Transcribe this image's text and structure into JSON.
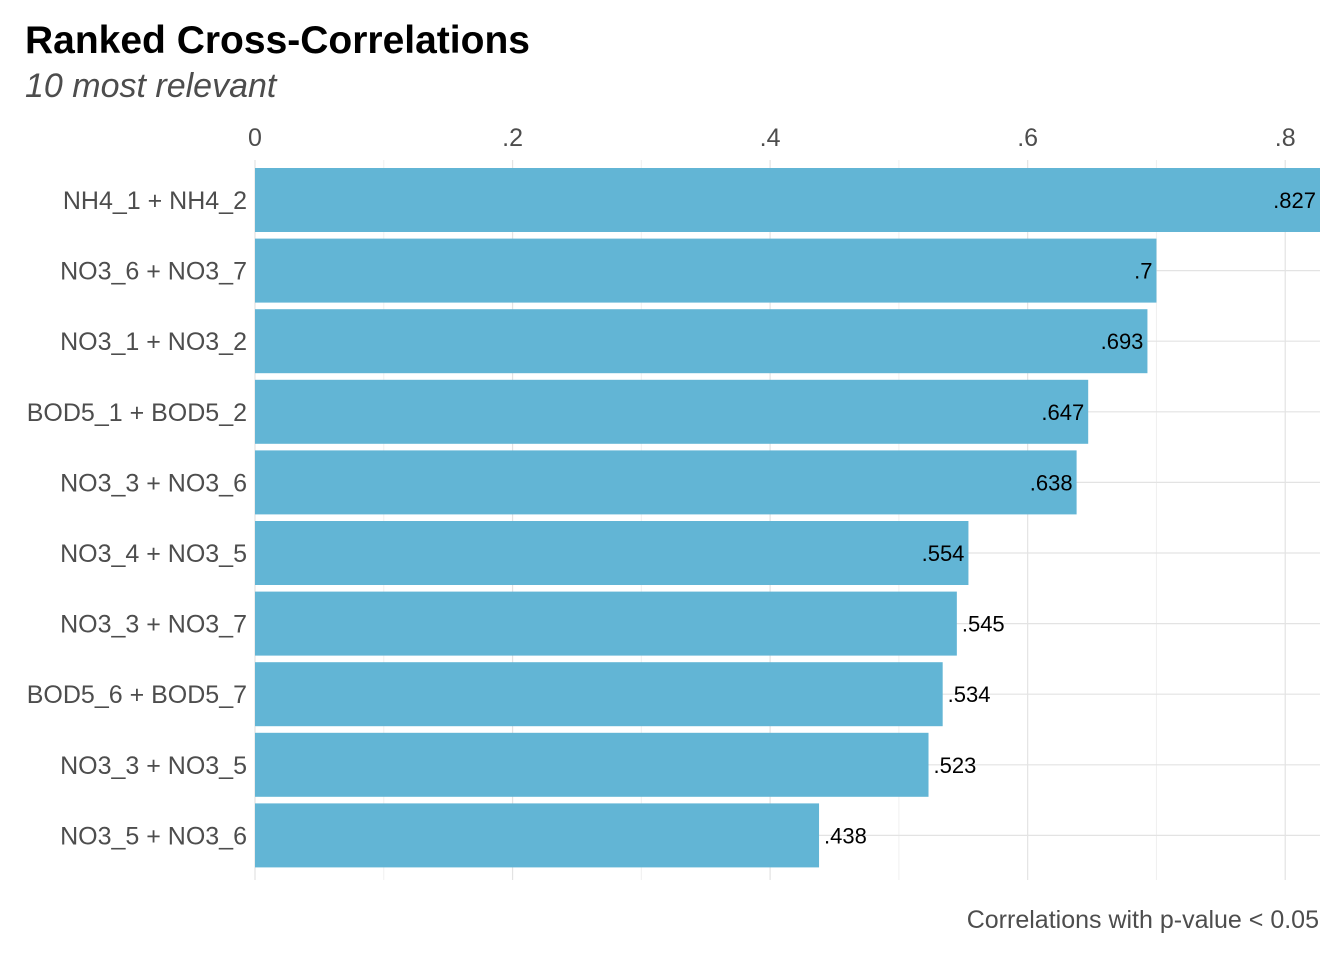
{
  "chart_data": {
    "type": "bar",
    "orientation": "horizontal",
    "title": "Ranked Cross-Correlations",
    "subtitle": "10 most relevant",
    "caption": "Correlations with p-value < 0.05",
    "categories": [
      "NH4_1 + NH4_2",
      "NO3_6 + NO3_7",
      "NO3_1 + NO3_2",
      "BOD5_1 + BOD5_2",
      "NO3_3 + NO3_6",
      "NO3_4 + NO3_5",
      "NO3_3 + NO3_7",
      "BOD5_6 + BOD5_7",
      "NO3_3 + NO3_5",
      "NO3_5 + NO3_6"
    ],
    "values": [
      0.827,
      0.7,
      0.693,
      0.647,
      0.638,
      0.554,
      0.545,
      0.534,
      0.523,
      0.438
    ],
    "value_labels": [
      ".827",
      ".7",
      ".693",
      ".647",
      ".638",
      ".554",
      ".545",
      ".534",
      ".523",
      ".438"
    ],
    "x_ticks": [
      0,
      0.2,
      0.4,
      0.6,
      0.8
    ],
    "x_tick_labels": [
      "0",
      ".2",
      ".4",
      ".6",
      ".8"
    ],
    "x_axis_position": "top",
    "xlim": [
      0,
      0.827
    ],
    "grid": true,
    "bar_color": "#62b5d5"
  }
}
